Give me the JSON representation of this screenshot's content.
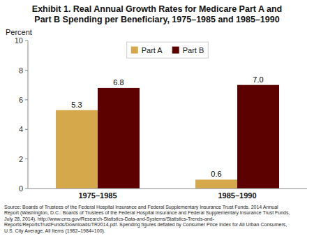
{
  "chart_data": {
    "type": "bar",
    "title": "Exhibit 1. Real Annual Growth Rates for Medicare Part A and\nPart B Spending per Beneficiary, 1975–1985 and 1985–1990",
    "ylabel": "Percent",
    "categories": [
      "1975–1985",
      "1985–1990"
    ],
    "series": [
      {
        "name": "Part A",
        "color": "#D4A84B",
        "values": [
          5.3,
          0.6
        ],
        "value_labels": [
          "5.3",
          "0.6"
        ]
      },
      {
        "name": "Part B",
        "color": "#5C0000",
        "values": [
          6.8,
          7.0
        ],
        "value_labels": [
          "6.8",
          "7.0"
        ]
      }
    ],
    "ylim": [
      0,
      10
    ],
    "yticks": [
      0,
      2,
      4,
      6,
      8,
      10
    ],
    "grid": false,
    "legend": "top",
    "data_labels": true,
    "annotations": [
      "Source: Boards of Trustees of the Federal Hospital Insurance and Federal Supplementary Insurance Trust Funds. 2014 Annual\nReport (Washington, D.C.: Boards of Trustees of the Federal Hospital Insurance and Federal Supplementary Insurance Trust Funds,\nJuly 28, 2014). http://www.cms.gov/Research-Statistics-Data-and-Systems/Statistics-Trends-and-\nReports/ReportsTrustFunds/Downloads/TR2014.pdf. Spending figures deflated by Consumer Price Index for All Urban Consumers,\nU.S. City Average, All Items (1982–1984=100)."
    ]
  }
}
